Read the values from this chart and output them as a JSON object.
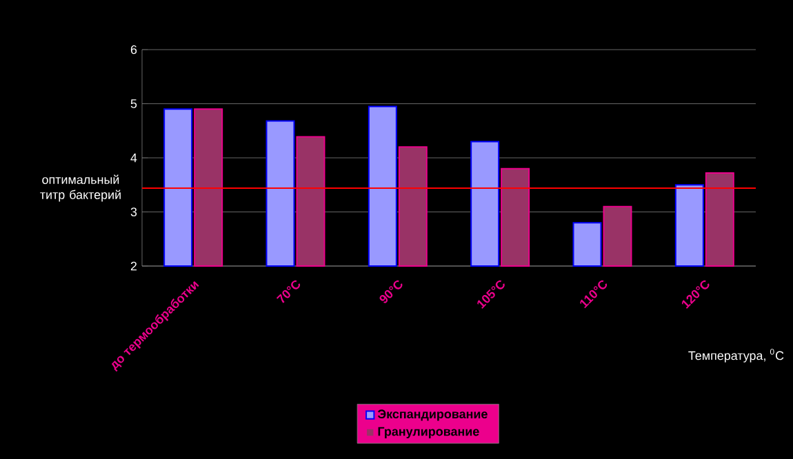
{
  "chart_data": {
    "type": "bar",
    "categories": [
      "до термообработки",
      "70°С",
      "90°С",
      "105°С",
      "110°С",
      "120°С"
    ],
    "series": [
      {
        "name": "Экспандирование",
        "color": "#9999ff",
        "values": [
          4.9,
          4.68,
          4.95,
          4.3,
          2.8,
          3.5
        ]
      },
      {
        "name": "Гранулирование",
        "color": "#993366",
        "values": [
          4.9,
          4.39,
          4.2,
          3.8,
          3.1,
          3.72
        ]
      }
    ],
    "xlabel": "Температура, $^{0}$С",
    "ylim": [
      2,
      6
    ],
    "yticks": [
      2,
      3,
      4,
      5,
      6
    ],
    "grid": "y",
    "legend": "bottom",
    "ref_lines": [
      {
        "axis": "y",
        "value": 3.44,
        "label": "оптимальный титр бактерий",
        "color": "#ff0000"
      }
    ]
  }
}
